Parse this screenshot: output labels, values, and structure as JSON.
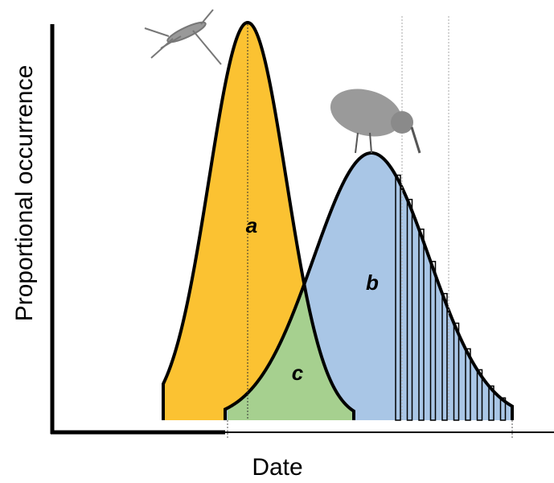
{
  "y_axis_label": "Proportional occurrence",
  "x_axis_label": "Date",
  "regions": [
    {
      "label": "a"
    },
    {
      "label": "b"
    },
    {
      "label": "c"
    }
  ]
}
